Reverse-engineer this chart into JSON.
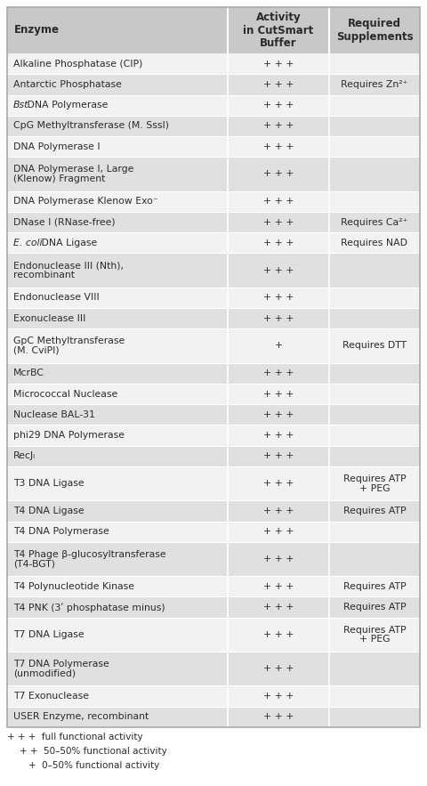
{
  "header": [
    "Enzyme",
    "Activity\nin CutSmart\nBuffer",
    "Required\nSupplements"
  ],
  "rows": [
    {
      "enzyme": "Alkaline Phosphatase (CIP)",
      "activity": "+ + +",
      "supplement": "",
      "italic_word": ""
    },
    {
      "enzyme": "Antarctic Phosphatase",
      "activity": "+ + +",
      "supplement": "Requires Zn²⁺",
      "italic_word": ""
    },
    {
      "enzyme": " DNA Polymerase",
      "activity": "+ + +",
      "supplement": "",
      "italic_word": "Bst"
    },
    {
      "enzyme": "CpG Methyltransferase (M. SssI)",
      "activity": "+ + +",
      "supplement": "",
      "italic_word": ""
    },
    {
      "enzyme": "DNA Polymerase I",
      "activity": "+ + +",
      "supplement": "",
      "italic_word": ""
    },
    {
      "enzyme": "DNA Polymerase I, Large\n(Klenow) Fragment",
      "activity": "+ + +",
      "supplement": "",
      "italic_word": ""
    },
    {
      "enzyme": "DNA Polymerase Klenow Exo⁻",
      "activity": "+ + +",
      "supplement": "",
      "italic_word": ""
    },
    {
      "enzyme": "DNase I (RNase-free)",
      "activity": "+ + +",
      "supplement": "Requires Ca²⁺",
      "italic_word": ""
    },
    {
      "enzyme": " DNA Ligase",
      "activity": "+ + +",
      "supplement": "Requires NAD",
      "italic_word": "E. coli"
    },
    {
      "enzyme": "Endonuclease III (Nth),\nrecombinant",
      "activity": "+ + +",
      "supplement": "",
      "italic_word": ""
    },
    {
      "enzyme": "Endonuclease VIII",
      "activity": "+ + +",
      "supplement": "",
      "italic_word": ""
    },
    {
      "enzyme": "Exonuclease III",
      "activity": "+ + +",
      "supplement": "",
      "italic_word": ""
    },
    {
      "enzyme": "GpC Methyltransferase\n(M. CviPI)",
      "activity": "+",
      "supplement": "Requires DTT",
      "italic_word": ""
    },
    {
      "enzyme": "McrBC",
      "activity": "+ + +",
      "supplement": "",
      "italic_word": ""
    },
    {
      "enzyme": "Micrococcal Nuclease",
      "activity": "+ + +",
      "supplement": "",
      "italic_word": ""
    },
    {
      "enzyme": "Nuclease BAL-31",
      "activity": "+ + +",
      "supplement": "",
      "italic_word": ""
    },
    {
      "enzyme": "phi29 DNA Polymerase",
      "activity": "+ + +",
      "supplement": "",
      "italic_word": ""
    },
    {
      "enzyme": "RecJₗ",
      "activity": "+ + +",
      "supplement": "",
      "italic_word": ""
    },
    {
      "enzyme": "T3 DNA Ligase",
      "activity": "+ + +",
      "supplement": "Requires ATP\n+ PEG",
      "italic_word": ""
    },
    {
      "enzyme": "T4 DNA Ligase",
      "activity": "+ + +",
      "supplement": "Requires ATP",
      "italic_word": ""
    },
    {
      "enzyme": "T4 DNA Polymerase",
      "activity": "+ + +",
      "supplement": "",
      "italic_word": ""
    },
    {
      "enzyme": "T4 Phage β-glucosyltransferase\n(T4-BGT)",
      "activity": "+ + +",
      "supplement": "",
      "italic_word": ""
    },
    {
      "enzyme": "T4 Polynucleotide Kinase",
      "activity": "+ + +",
      "supplement": "Requires ATP",
      "italic_word": ""
    },
    {
      "enzyme": "T4 PNK (3ʹ phosphatase minus)",
      "activity": "+ + +",
      "supplement": "Requires ATP",
      "italic_word": ""
    },
    {
      "enzyme": "T7 DNA Ligase",
      "activity": "+ + +",
      "supplement": "Requires ATP\n+ PEG",
      "italic_word": ""
    },
    {
      "enzyme": "T7 DNA Polymerase\n(unmodified)",
      "activity": "+ + +",
      "supplement": "",
      "italic_word": ""
    },
    {
      "enzyme": "T7 Exonuclease",
      "activity": "+ + +",
      "supplement": "",
      "italic_word": ""
    },
    {
      "enzyme": "USER Enzyme, recombinant",
      "activity": "+ + +",
      "supplement": "",
      "italic_word": ""
    }
  ],
  "footer_lines": [
    [
      "+ + +",
      "  full functional activity"
    ],
    [
      "+ +",
      "  50–50% functional activity"
    ],
    [
      "+",
      "  0–50% functional activity"
    ]
  ],
  "bg_header": "#c8c8c8",
  "bg_odd": "#f2f2f2",
  "bg_even": "#e0e0e0",
  "text_color": "#2a2a2a",
  "border_color": "#aaaaaa",
  "divider_color": "#ffffff"
}
